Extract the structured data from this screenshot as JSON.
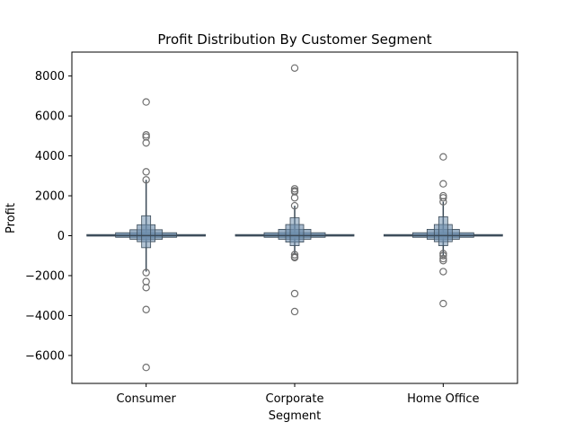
{
  "chart_data": {
    "type": "boxenplot",
    "title": "Profit Distribution By Customer Segment",
    "xlabel": "Segment",
    "ylabel": "Profit",
    "categories": [
      "Consumer",
      "Corporate",
      "Home Office"
    ],
    "ylim": [
      -7400,
      9200
    ],
    "yticks": [
      -6000,
      -4000,
      -2000,
      0,
      2000,
      4000,
      6000,
      8000
    ],
    "ytick_labels": [
      "−6000",
      "−4000",
      "−2000",
      "0",
      "2000",
      "4000",
      "6000",
      "8000"
    ],
    "box_color": "#6f8fae",
    "line_color": "#3b4a57",
    "grid": false,
    "series": [
      {
        "category": "Consumer",
        "median": 8,
        "whisker_low": -1800,
        "whisker_high": 2800,
        "boxes": [
          {
            "low": -20,
            "high": 60
          },
          {
            "low": -80,
            "high": 150
          },
          {
            "low": -180,
            "high": 300
          },
          {
            "low": -300,
            "high": 550
          },
          {
            "low": -600,
            "high": 1000
          }
        ],
        "outliers": [
          6700,
          5050,
          4950,
          4650,
          3200,
          2800,
          -1850,
          -2300,
          -2600,
          -3700,
          -6600
        ]
      },
      {
        "category": "Corporate",
        "median": 8,
        "whisker_low": -950,
        "whisker_high": 1500,
        "boxes": [
          {
            "low": -20,
            "high": 60
          },
          {
            "low": -80,
            "high": 150
          },
          {
            "low": -180,
            "high": 320
          },
          {
            "low": -320,
            "high": 560
          },
          {
            "low": -500,
            "high": 900
          }
        ],
        "outliers": [
          8400,
          2350,
          2250,
          2200,
          1900,
          1500,
          -950,
          -1050,
          -1100,
          -2900,
          -3800
        ]
      },
      {
        "category": "Home Office",
        "median": 8,
        "whisker_low": -1000,
        "whisker_high": 1700,
        "boxes": [
          {
            "low": -20,
            "high": 60
          },
          {
            "low": -80,
            "high": 150
          },
          {
            "low": -180,
            "high": 320
          },
          {
            "low": -300,
            "high": 560
          },
          {
            "low": -500,
            "high": 950
          }
        ],
        "outliers": [
          3950,
          2600,
          2000,
          1900,
          1700,
          -900,
          -1000,
          -1150,
          -1250,
          -1800,
          -3400
        ]
      }
    ]
  }
}
